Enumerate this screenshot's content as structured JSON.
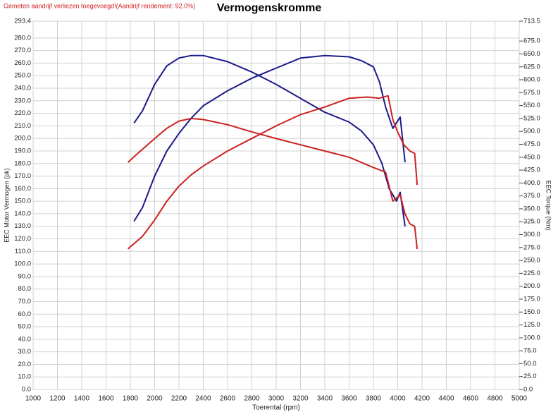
{
  "chart_data": {
    "type": "line",
    "title": "Vermogenskromme",
    "subtitle": "Gemeten aandrijf verliezen toegevoegd!(Aandrijf rendement: 92.0%)",
    "x_label": "Toerental (rpm)",
    "y_label": "EEC Motor Vermogen (pk)",
    "y2_label": "EEC Torque (Nm)",
    "grid": true,
    "xlim": [
      1000,
      5000
    ],
    "xticks": [
      1000,
      1200,
      1400,
      1600,
      1800,
      2000,
      2200,
      2400,
      2600,
      2800,
      3000,
      3200,
      3400,
      3600,
      3800,
      4000,
      4200,
      4400,
      4600,
      4800,
      5000
    ],
    "ylim": [
      0,
      293.4
    ],
    "yticks": [
      {
        "value": 0,
        "label": "0.0"
      },
      {
        "value": 10,
        "label": "10.0"
      },
      {
        "value": 20,
        "label": "20.0"
      },
      {
        "value": 30,
        "label": "30.0"
      },
      {
        "value": 40,
        "label": "40.0"
      },
      {
        "value": 50,
        "label": "50.0"
      },
      {
        "value": 60,
        "label": "60.0"
      },
      {
        "value": 70,
        "label": "70.0"
      },
      {
        "value": 80,
        "label": "80.0"
      },
      {
        "value": 90,
        "label": "90.0"
      },
      {
        "value": 100,
        "label": "100.0"
      },
      {
        "value": 110,
        "label": "110.0"
      },
      {
        "value": 120,
        "label": "120.0"
      },
      {
        "value": 130,
        "label": "130.0"
      },
      {
        "value": 140,
        "label": "140.0"
      },
      {
        "value": 150,
        "label": "150.0"
      },
      {
        "value": 160,
        "label": "160.0"
      },
      {
        "value": 170,
        "label": "170.0"
      },
      {
        "value": 180,
        "label": "180.0"
      },
      {
        "value": 190,
        "label": "190.0"
      },
      {
        "value": 200,
        "label": "200.0"
      },
      {
        "value": 210,
        "label": "210.0"
      },
      {
        "value": 220,
        "label": "220.0"
      },
      {
        "value": 230,
        "label": "230.0"
      },
      {
        "value": 240,
        "label": "240.0"
      },
      {
        "value": 250,
        "label": "250.0"
      },
      {
        "value": 260,
        "label": "260.0"
      },
      {
        "value": 270,
        "label": "270.0"
      },
      {
        "value": 280,
        "label": "280.0"
      },
      293.4
    ],
    "y2lim": [
      0,
      713.5
    ],
    "y2ticks": [
      {
        "value": 0,
        "label": "0.0"
      },
      {
        "value": 25,
        "label": "25.0"
      },
      {
        "value": 50,
        "label": "50.0"
      },
      {
        "value": 75,
        "label": "75.0"
      },
      {
        "value": 100,
        "label": "100.0"
      },
      {
        "value": 125,
        "label": "125.0"
      },
      {
        "value": 150,
        "label": "150.0"
      },
      {
        "value": 175,
        "label": "175.0"
      },
      {
        "value": 200,
        "label": "200.0"
      },
      {
        "value": 225,
        "label": "225.0"
      },
      {
        "value": 250,
        "label": "250.0"
      },
      {
        "value": 275,
        "label": "275.0"
      },
      {
        "value": 300,
        "label": "300.0"
      },
      {
        "value": 325,
        "label": "325.0"
      },
      {
        "value": 350,
        "label": "350.0"
      },
      {
        "value": 375,
        "label": "375.0"
      },
      {
        "value": 400,
        "label": "400.0"
      },
      {
        "value": 425,
        "label": "425.0"
      },
      {
        "value": 450,
        "label": "450.0"
      },
      {
        "value": 475,
        "label": "475.0"
      },
      {
        "value": 500,
        "label": "500.0"
      },
      {
        "value": 525,
        "label": "525.0"
      },
      {
        "value": 550,
        "label": "550.0"
      },
      {
        "value": 575,
        "label": "575.0"
      },
      {
        "value": 600,
        "label": "600.0"
      },
      {
        "value": 625,
        "label": "625.0"
      },
      {
        "value": 650,
        "label": "650.0"
      },
      {
        "value": 675,
        "label": "675.0"
      },
      713.5
    ],
    "series": [
      {
        "color": "#1a1a8c",
        "x": [
          1830,
          1900,
          2000,
          2100,
          2200,
          2300,
          2400,
          2600,
          2800,
          3000,
          3200,
          3400,
          3600,
          3700,
          3800,
          3850,
          3900,
          3960,
          4020,
          4060
        ],
        "values": [
          134,
          145,
          170,
          190,
          204,
          216,
          226,
          238,
          248,
          256,
          264,
          266,
          265,
          262,
          257,
          245,
          225,
          208,
          217,
          181
        ]
      },
      {
        "color": "#1a1a8c",
        "axis": "y2",
        "x": [
          1830,
          1900,
          2000,
          2100,
          2200,
          2300,
          2400,
          2600,
          2800,
          3000,
          3200,
          3400,
          3600,
          3700,
          3800,
          3870,
          3930,
          3990,
          4020,
          4060
        ],
        "values": [
          516,
          540,
          591,
          627,
          642,
          647,
          647,
          635,
          615,
          591,
          564,
          537,
          518,
          501,
          474,
          438,
          389,
          365,
          382,
          316
        ]
      },
      {
        "color": "#cc2020",
        "x": [
          1780,
          1900,
          2000,
          2100,
          2200,
          2300,
          2400,
          2600,
          2800,
          3000,
          3200,
          3400,
          3600,
          3750,
          3850,
          3920,
          3960,
          4000,
          4050,
          4100,
          4140,
          4160
        ],
        "values": [
          112,
          122,
          135,
          150,
          162,
          171,
          178,
          190,
          200,
          210,
          219,
          225,
          232,
          233,
          232,
          234,
          215,
          205,
          195,
          190,
          188,
          163
        ]
      },
      {
        "color": "#cc2020",
        "axis": "y2",
        "x": [
          1780,
          1850,
          2000,
          2100,
          2200,
          2300,
          2400,
          2600,
          2800,
          3000,
          3200,
          3400,
          3600,
          3800,
          3900,
          3960,
          4020,
          4060,
          4100,
          4140,
          4160
        ],
        "values": [
          440,
          455,
          486,
          506,
          520,
          525,
          523,
          513,
          499,
          486,
          474,
          462,
          450,
          430,
          421,
          365,
          377,
          340,
          321,
          316,
          272
        ]
      }
    ]
  }
}
